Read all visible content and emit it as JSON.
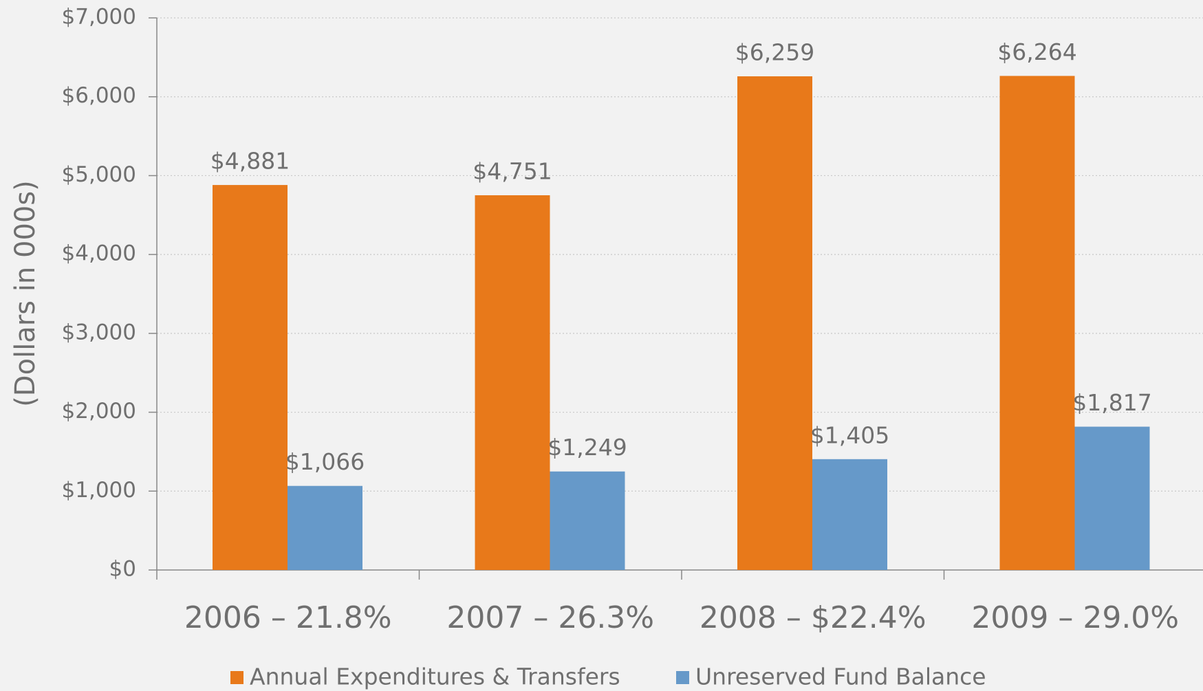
{
  "chart_data": {
    "type": "bar",
    "y_axis_label": "(Dollars in 000s)",
    "categories": [
      "2006 – 21.8%",
      "2007 – 26.3%",
      "2008 – $22.4%",
      "2009 – 29.0%"
    ],
    "series": [
      {
        "name": "Annual Expenditures & Transfers",
        "color": "#e8791a",
        "values": [
          4881,
          4751,
          6259,
          6264
        ],
        "value_labels": [
          "$4,881",
          "$4,751",
          "$6,259",
          "$6,264"
        ]
      },
      {
        "name": "Unreserved Fund Balance",
        "color": "#6699c9",
        "values": [
          1066,
          1249,
          1405,
          1817
        ],
        "value_labels": [
          "$1,066",
          "$1,249",
          "$1,405",
          "$1,817"
        ]
      }
    ],
    "ylim": [
      0,
      7000
    ],
    "yticks": [
      {
        "value": 0,
        "label": "$0"
      },
      {
        "value": 1000,
        "label": "$1,000"
      },
      {
        "value": 2000,
        "label": "$2,000"
      },
      {
        "value": 3000,
        "label": "$3,000"
      },
      {
        "value": 4000,
        "label": "$4,000"
      },
      {
        "value": 5000,
        "label": "$5,000"
      },
      {
        "value": 6000,
        "label": "$6,000"
      },
      {
        "value": 7000,
        "label": "$7,000"
      }
    ],
    "grid": true
  }
}
